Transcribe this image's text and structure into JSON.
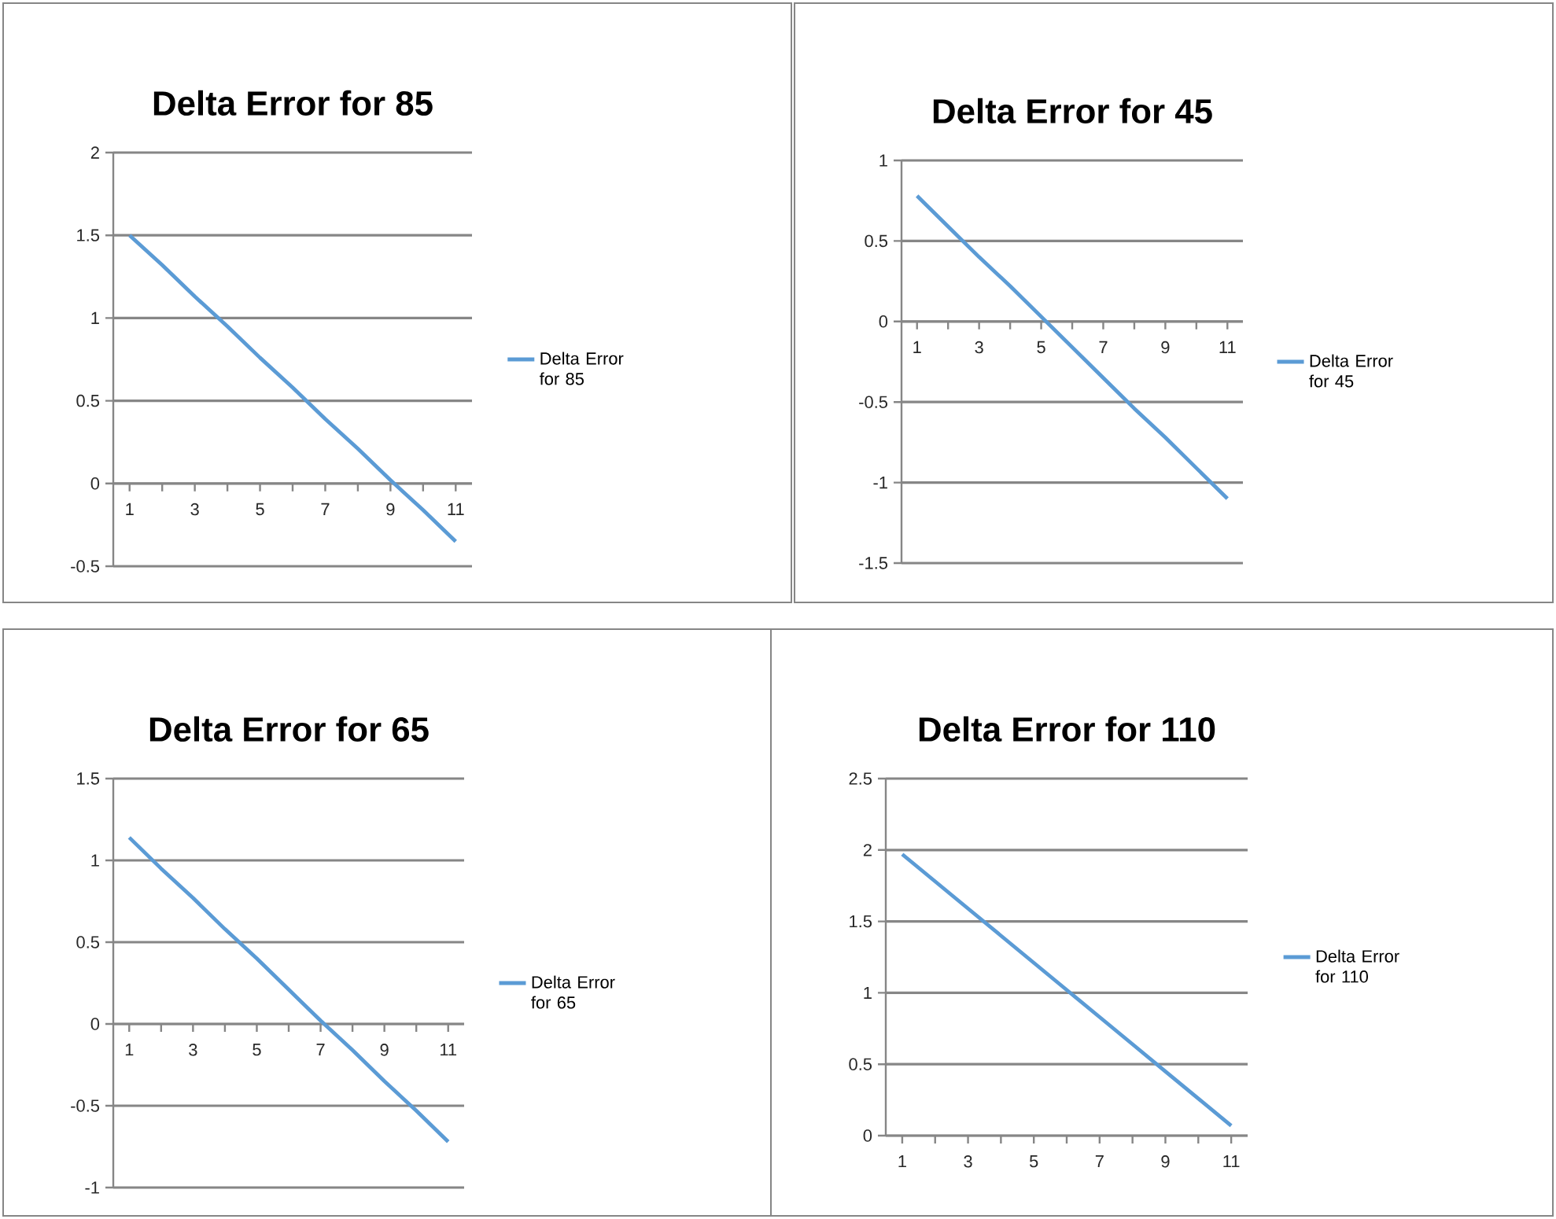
{
  "chart_data": [
    {
      "type": "line",
      "title": "Delta Error for 85",
      "categories": [
        "1",
        null,
        "3",
        null,
        "5",
        null,
        "7",
        null,
        "9",
        null,
        "11"
      ],
      "ylim": [
        -0.5,
        2
      ],
      "yticks": [
        -0.5,
        0,
        0.5,
        1,
        1.5,
        2
      ],
      "grid": "y",
      "legend": "right",
      "series": [
        {
          "name": "Delta Error for 85",
          "color": "#5b9bd5",
          "values": [
            1.5,
            1.32,
            1.13,
            0.95,
            0.76,
            0.58,
            0.39,
            0.21,
            0.02,
            -0.16,
            -0.35
          ]
        }
      ]
    },
    {
      "type": "line",
      "title": "Delta Error for 45",
      "categories": [
        "1",
        null,
        "3",
        null,
        "5",
        null,
        "7",
        null,
        "9",
        null,
        "11"
      ],
      "ylim": [
        -1.5,
        1
      ],
      "yticks": [
        -1.5,
        -1,
        -0.5,
        0,
        0.5,
        1
      ],
      "grid": "y",
      "legend": "right",
      "series": [
        {
          "name": "Delta Error for 45",
          "color": "#5b9bd5",
          "values": [
            0.78,
            0.59,
            0.4,
            0.22,
            0.03,
            -0.16,
            -0.35,
            -0.54,
            -0.72,
            -0.91,
            -1.1
          ]
        }
      ]
    },
    {
      "type": "line",
      "title": "Delta Error for 65",
      "categories": [
        "1",
        null,
        "3",
        null,
        "5",
        null,
        "7",
        null,
        "9",
        null,
        "11"
      ],
      "ylim": [
        -1,
        1.5
      ],
      "yticks": [
        -1,
        -0.5,
        0,
        0.5,
        1,
        1.5
      ],
      "grid": "y",
      "legend": "right",
      "series": [
        {
          "name": "Delta Error for 65",
          "color": "#5b9bd5",
          "values": [
            1.14,
            0.95,
            0.77,
            0.58,
            0.4,
            0.21,
            0.02,
            -0.16,
            -0.35,
            -0.53,
            -0.72
          ]
        }
      ]
    },
    {
      "type": "line",
      "title": "Delta Error for 110",
      "categories": [
        "1",
        null,
        "3",
        null,
        "5",
        null,
        "7",
        null,
        "9",
        null,
        "11"
      ],
      "ylim": [
        0,
        2.5
      ],
      "yticks": [
        0,
        0.5,
        1,
        1.5,
        2,
        2.5
      ],
      "grid": "y",
      "legend": "right",
      "series": [
        {
          "name": "Delta Error for 110",
          "color": "#5b9bd5",
          "values": [
            1.97,
            1.78,
            1.59,
            1.4,
            1.21,
            1.02,
            0.83,
            0.64,
            0.45,
            0.26,
            0.07
          ]
        }
      ]
    }
  ]
}
